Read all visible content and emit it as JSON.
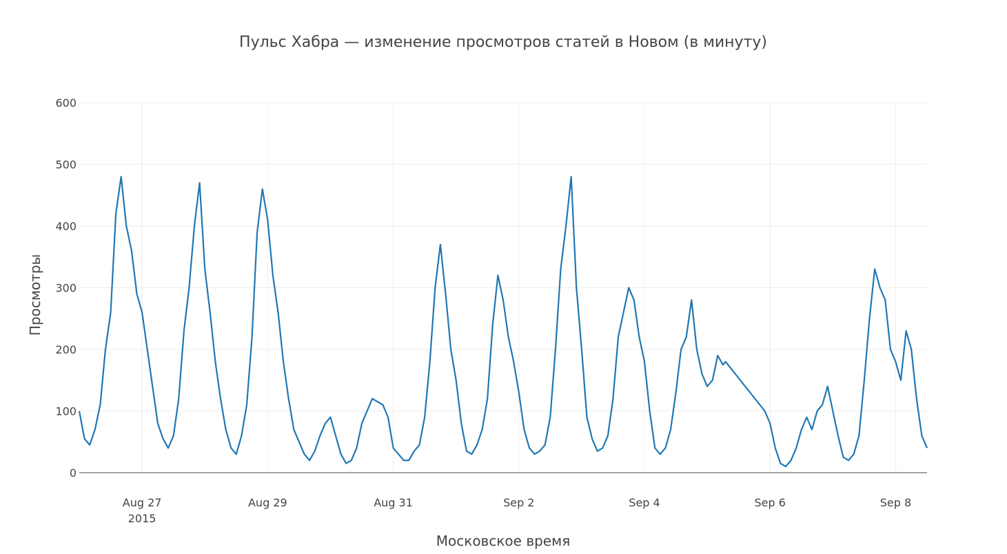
{
  "chart_data": {
    "type": "line",
    "title": "Пульс Хабра — изменение просмотров статей в Новом (в минуту)",
    "xlabel": "Московское время",
    "ylabel": "Просмотры",
    "year_label": "2015",
    "ylim": [
      0,
      600
    ],
    "xlim": [
      "2015-08-26T00:00",
      "2015-09-08T12:00"
    ],
    "yticks": [
      0,
      100,
      200,
      300,
      400,
      500,
      600
    ],
    "xticks": [
      {
        "date": "2015-08-27",
        "label": "Aug 27"
      },
      {
        "date": "2015-08-29",
        "label": "Aug 29"
      },
      {
        "date": "2015-08-31",
        "label": "Aug 31"
      },
      {
        "date": "2015-09-02",
        "label": "Sep 2"
      },
      {
        "date": "2015-09-04",
        "label": "Sep 4"
      },
      {
        "date": "2015-09-06",
        "label": "Sep 6"
      },
      {
        "date": "2015-09-08",
        "label": "Sep 8"
      }
    ],
    "grid": true,
    "legend": false,
    "color": "#1f77b4",
    "series": [
      {
        "x": [
          "2015-08-26T00:00",
          "2015-08-26T02:00",
          "2015-08-26T04:00",
          "2015-08-26T06:00",
          "2015-08-26T08:00",
          "2015-08-26T10:00",
          "2015-08-26T12:00",
          "2015-08-26T14:00",
          "2015-08-26T16:00",
          "2015-08-26T18:00",
          "2015-08-26T20:00",
          "2015-08-26T22:00",
          "2015-08-27T00:00",
          "2015-08-27T02:00",
          "2015-08-27T04:00",
          "2015-08-27T06:00",
          "2015-08-27T08:00",
          "2015-08-27T10:00",
          "2015-08-27T12:00",
          "2015-08-27T14:00",
          "2015-08-27T16:00",
          "2015-08-27T18:00",
          "2015-08-27T20:00",
          "2015-08-27T22:00",
          "2015-08-28T00:00",
          "2015-08-28T02:00",
          "2015-08-28T04:00",
          "2015-08-28T06:00",
          "2015-08-28T08:00",
          "2015-08-28T10:00",
          "2015-08-28T12:00",
          "2015-08-28T14:00",
          "2015-08-28T16:00",
          "2015-08-28T18:00",
          "2015-08-28T20:00",
          "2015-08-28T22:00",
          "2015-08-29T00:00",
          "2015-08-29T02:00",
          "2015-08-29T04:00",
          "2015-08-29T06:00",
          "2015-08-29T08:00",
          "2015-08-29T10:00",
          "2015-08-29T12:00",
          "2015-08-29T14:00",
          "2015-08-29T16:00",
          "2015-08-29T18:00",
          "2015-08-29T20:00",
          "2015-08-29T22:00",
          "2015-08-30T00:00",
          "2015-08-30T02:00",
          "2015-08-30T04:00",
          "2015-08-30T06:00",
          "2015-08-30T08:00",
          "2015-08-30T10:00",
          "2015-08-30T12:00",
          "2015-08-30T14:00",
          "2015-08-30T16:00",
          "2015-08-30T18:00",
          "2015-08-30T20:00",
          "2015-08-30T22:00",
          "2015-08-31T00:00",
          "2015-08-31T02:00",
          "2015-08-31T04:00",
          "2015-08-31T06:00",
          "2015-08-31T08:00",
          "2015-08-31T10:00",
          "2015-08-31T12:00",
          "2015-08-31T14:00",
          "2015-08-31T16:00",
          "2015-08-31T18:00",
          "2015-08-31T20:00",
          "2015-08-31T22:00",
          "2015-09-01T00:00",
          "2015-09-01T02:00",
          "2015-09-01T04:00",
          "2015-09-01T06:00",
          "2015-09-01T08:00",
          "2015-09-01T10:00",
          "2015-09-01T12:00",
          "2015-09-01T14:00",
          "2015-09-01T16:00",
          "2015-09-01T18:00",
          "2015-09-01T20:00",
          "2015-09-01T22:00",
          "2015-09-02T00:00",
          "2015-09-02T02:00",
          "2015-09-02T04:00",
          "2015-09-02T06:00",
          "2015-09-02T08:00",
          "2015-09-02T10:00",
          "2015-09-02T12:00",
          "2015-09-02T14:00",
          "2015-09-02T16:00",
          "2015-09-02T18:00",
          "2015-09-02T20:00",
          "2015-09-02T22:00",
          "2015-09-03T00:00",
          "2015-09-03T02:00",
          "2015-09-03T04:00",
          "2015-09-03T06:00",
          "2015-09-03T08:00",
          "2015-09-03T10:00",
          "2015-09-03T12:00",
          "2015-09-03T14:00",
          "2015-09-03T16:00",
          "2015-09-03T18:00",
          "2015-09-03T20:00",
          "2015-09-03T22:00",
          "2015-09-04T00:00",
          "2015-09-04T02:00",
          "2015-09-04T04:00",
          "2015-09-04T06:00",
          "2015-09-04T08:00",
          "2015-09-04T10:00",
          "2015-09-04T12:00",
          "2015-09-04T14:00",
          "2015-09-04T16:00",
          "2015-09-04T18:00",
          "2015-09-04T20:00",
          "2015-09-04T22:00",
          "2015-09-05T00:00",
          "2015-09-05T02:00",
          "2015-09-05T04:00",
          "2015-09-05T06:00",
          "2015-09-05T07:00",
          "2015-09-05T22:00",
          "2015-09-06T00:00",
          "2015-09-06T02:00",
          "2015-09-06T04:00",
          "2015-09-06T06:00",
          "2015-09-06T08:00",
          "2015-09-06T10:00",
          "2015-09-06T12:00",
          "2015-09-06T14:00",
          "2015-09-06T16:00",
          "2015-09-06T18:00",
          "2015-09-06T20:00",
          "2015-09-06T22:00",
          "2015-09-07T00:00",
          "2015-09-07T02:00",
          "2015-09-07T04:00",
          "2015-09-07T06:00",
          "2015-09-07T08:00",
          "2015-09-07T10:00",
          "2015-09-07T12:00",
          "2015-09-07T14:00",
          "2015-09-07T16:00",
          "2015-09-07T18:00",
          "2015-09-07T20:00",
          "2015-09-07T22:00",
          "2015-09-08T00:00",
          "2015-09-08T02:00",
          "2015-09-08T04:00",
          "2015-09-08T06:00",
          "2015-09-08T08:00",
          "2015-09-08T10:00",
          "2015-09-08T12:00"
        ],
        "y": [
          100,
          55,
          45,
          70,
          110,
          200,
          260,
          420,
          480,
          400,
          360,
          290,
          260,
          200,
          140,
          80,
          55,
          40,
          60,
          120,
          230,
          300,
          400,
          470,
          330,
          260,
          180,
          120,
          70,
          40,
          30,
          60,
          110,
          220,
          390,
          460,
          410,
          320,
          260,
          180,
          120,
          70,
          50,
          30,
          20,
          35,
          60,
          80,
          90,
          60,
          30,
          15,
          20,
          40,
          80,
          100,
          120,
          115,
          110,
          90,
          40,
          30,
          20,
          20,
          35,
          45,
          90,
          180,
          300,
          370,
          290,
          200,
          150,
          80,
          35,
          30,
          45,
          70,
          120,
          240,
          320,
          280,
          220,
          180,
          130,
          70,
          40,
          30,
          35,
          45,
          90,
          200,
          330,
          400,
          480,
          300,
          200,
          90,
          55,
          35,
          40,
          60,
          120,
          220,
          260,
          300,
          280,
          220,
          180,
          100,
          40,
          30,
          40,
          70,
          130,
          200,
          220,
          280,
          200,
          160,
          140,
          150,
          190,
          175,
          180,
          100,
          80,
          40,
          15,
          10,
          20,
          40,
          70,
          90,
          70,
          100,
          110,
          140,
          100,
          60,
          25,
          20,
          30,
          60,
          150,
          250,
          330,
          300,
          280,
          200,
          180,
          150,
          230,
          200,
          120,
          60,
          40
        ]
      }
    ]
  }
}
